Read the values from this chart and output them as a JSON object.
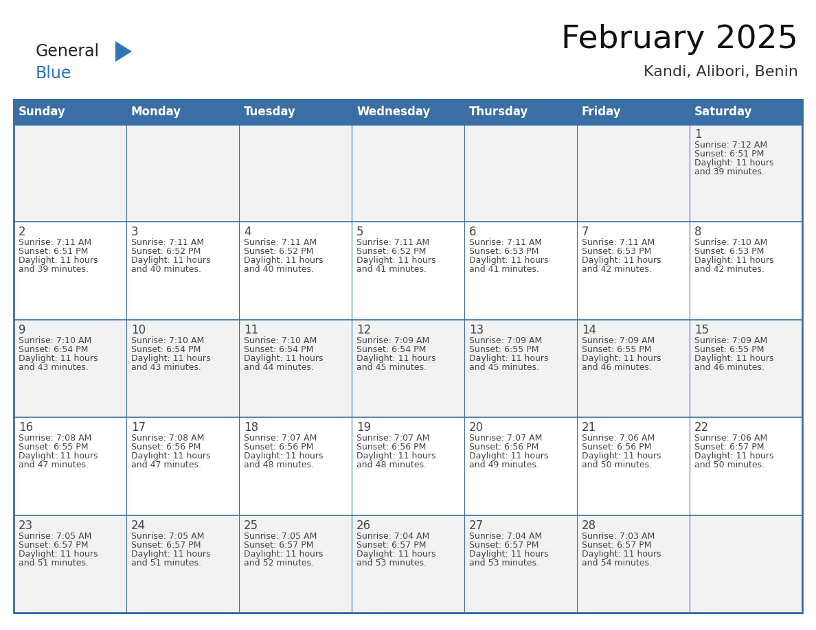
{
  "title": "February 2025",
  "subtitle": "Kandi, Alibori, Benin",
  "days_of_week": [
    "Sunday",
    "Monday",
    "Tuesday",
    "Wednesday",
    "Thursday",
    "Friday",
    "Saturday"
  ],
  "header_bg": "#3a6ea5",
  "header_text": "#ffffff",
  "cell_bg_odd": "#f2f2f2",
  "cell_bg_even": "#ffffff",
  "border_color_outer": "#3a6ea5",
  "border_color_inner": "#3a6ea5",
  "text_color": "#444444",
  "day_num_color": "#444444",
  "logo_general_color": "#222222",
  "logo_blue_color": "#2e75b6",
  "logo_triangle_color": "#2e75b6",
  "title_color": "#111111",
  "subtitle_color": "#333333",
  "calendar_data": [
    [
      null,
      null,
      null,
      null,
      null,
      null,
      {
        "day": 1,
        "sunrise": "7:12 AM",
        "sunset": "6:51 PM",
        "daylight": "11 hours\nand 39 minutes."
      }
    ],
    [
      {
        "day": 2,
        "sunrise": "7:11 AM",
        "sunset": "6:51 PM",
        "daylight": "11 hours\nand 39 minutes."
      },
      {
        "day": 3,
        "sunrise": "7:11 AM",
        "sunset": "6:52 PM",
        "daylight": "11 hours\nand 40 minutes."
      },
      {
        "day": 4,
        "sunrise": "7:11 AM",
        "sunset": "6:52 PM",
        "daylight": "11 hours\nand 40 minutes."
      },
      {
        "day": 5,
        "sunrise": "7:11 AM",
        "sunset": "6:52 PM",
        "daylight": "11 hours\nand 41 minutes."
      },
      {
        "day": 6,
        "sunrise": "7:11 AM",
        "sunset": "6:53 PM",
        "daylight": "11 hours\nand 41 minutes."
      },
      {
        "day": 7,
        "sunrise": "7:11 AM",
        "sunset": "6:53 PM",
        "daylight": "11 hours\nand 42 minutes."
      },
      {
        "day": 8,
        "sunrise": "7:10 AM",
        "sunset": "6:53 PM",
        "daylight": "11 hours\nand 42 minutes."
      }
    ],
    [
      {
        "day": 9,
        "sunrise": "7:10 AM",
        "sunset": "6:54 PM",
        "daylight": "11 hours\nand 43 minutes."
      },
      {
        "day": 10,
        "sunrise": "7:10 AM",
        "sunset": "6:54 PM",
        "daylight": "11 hours\nand 43 minutes."
      },
      {
        "day": 11,
        "sunrise": "7:10 AM",
        "sunset": "6:54 PM",
        "daylight": "11 hours\nand 44 minutes."
      },
      {
        "day": 12,
        "sunrise": "7:09 AM",
        "sunset": "6:54 PM",
        "daylight": "11 hours\nand 45 minutes."
      },
      {
        "day": 13,
        "sunrise": "7:09 AM",
        "sunset": "6:55 PM",
        "daylight": "11 hours\nand 45 minutes."
      },
      {
        "day": 14,
        "sunrise": "7:09 AM",
        "sunset": "6:55 PM",
        "daylight": "11 hours\nand 46 minutes."
      },
      {
        "day": 15,
        "sunrise": "7:09 AM",
        "sunset": "6:55 PM",
        "daylight": "11 hours\nand 46 minutes."
      }
    ],
    [
      {
        "day": 16,
        "sunrise": "7:08 AM",
        "sunset": "6:55 PM",
        "daylight": "11 hours\nand 47 minutes."
      },
      {
        "day": 17,
        "sunrise": "7:08 AM",
        "sunset": "6:56 PM",
        "daylight": "11 hours\nand 47 minutes."
      },
      {
        "day": 18,
        "sunrise": "7:07 AM",
        "sunset": "6:56 PM",
        "daylight": "11 hours\nand 48 minutes."
      },
      {
        "day": 19,
        "sunrise": "7:07 AM",
        "sunset": "6:56 PM",
        "daylight": "11 hours\nand 48 minutes."
      },
      {
        "day": 20,
        "sunrise": "7:07 AM",
        "sunset": "6:56 PM",
        "daylight": "11 hours\nand 49 minutes."
      },
      {
        "day": 21,
        "sunrise": "7:06 AM",
        "sunset": "6:56 PM",
        "daylight": "11 hours\nand 50 minutes."
      },
      {
        "day": 22,
        "sunrise": "7:06 AM",
        "sunset": "6:57 PM",
        "daylight": "11 hours\nand 50 minutes."
      }
    ],
    [
      {
        "day": 23,
        "sunrise": "7:05 AM",
        "sunset": "6:57 PM",
        "daylight": "11 hours\nand 51 minutes."
      },
      {
        "day": 24,
        "sunrise": "7:05 AM",
        "sunset": "6:57 PM",
        "daylight": "11 hours\nand 51 minutes."
      },
      {
        "day": 25,
        "sunrise": "7:05 AM",
        "sunset": "6:57 PM",
        "daylight": "11 hours\nand 52 minutes."
      },
      {
        "day": 26,
        "sunrise": "7:04 AM",
        "sunset": "6:57 PM",
        "daylight": "11 hours\nand 53 minutes."
      },
      {
        "day": 27,
        "sunrise": "7:04 AM",
        "sunset": "6:57 PM",
        "daylight": "11 hours\nand 53 minutes."
      },
      {
        "day": 28,
        "sunrise": "7:03 AM",
        "sunset": "6:57 PM",
        "daylight": "11 hours\nand 54 minutes."
      },
      null
    ]
  ]
}
